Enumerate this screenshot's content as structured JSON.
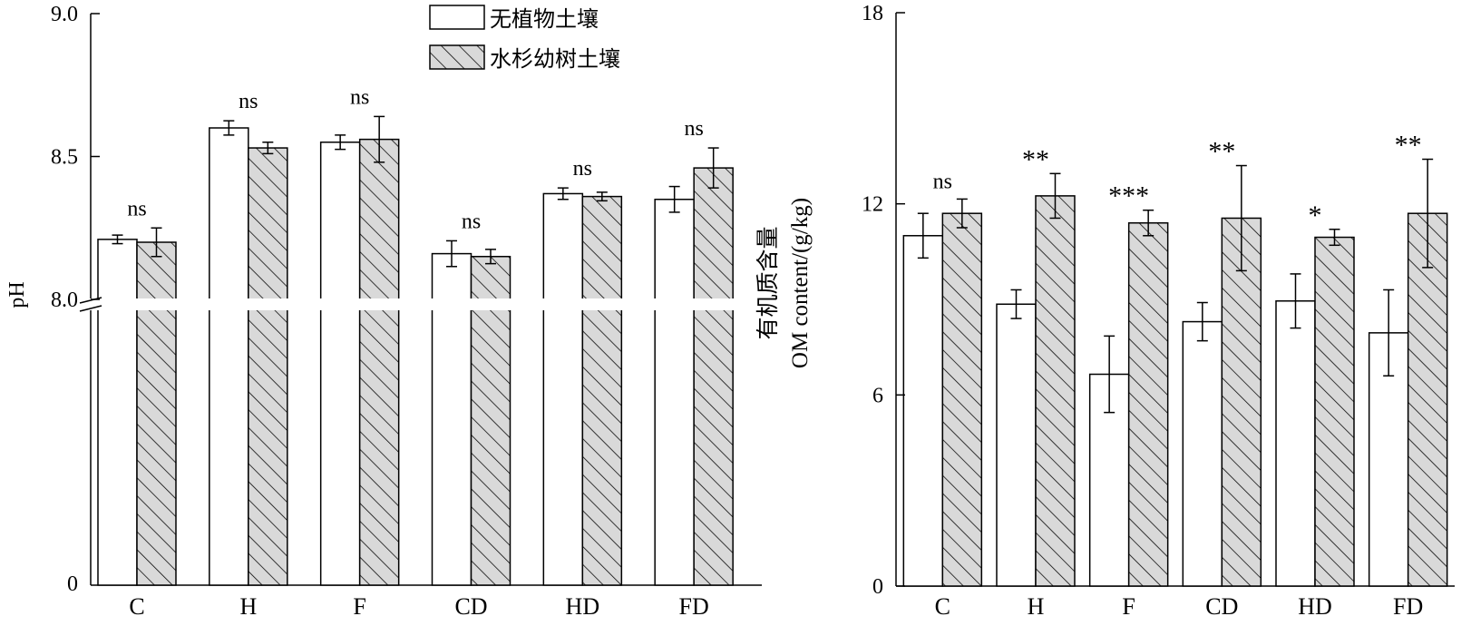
{
  "colors": {
    "no_plant_fill": "#ffffff",
    "seedling_fill": "#d9d9d9",
    "hatch": "#000000",
    "axis": "#000000",
    "break_gap": "#ffffff"
  },
  "legend": {
    "entries": [
      "无植物土壤",
      "水杉幼树土壤"
    ],
    "placement": "top-center of left panel"
  },
  "chart_data": [
    {
      "type": "bar",
      "panel": "left",
      "ylabel": "pH",
      "xlabel": "",
      "categories": [
        "C",
        "H",
        "F",
        "CD",
        "HD",
        "FD"
      ],
      "broken_axis": true,
      "ylim_lower": [
        0,
        8.0
      ],
      "ylim_upper": [
        8.0,
        9.0
      ],
      "yticks_lower": [
        "0"
      ],
      "yticks_upper": [
        "8.0",
        "8.5",
        "9.0"
      ],
      "series": [
        {
          "name": "无植物土壤",
          "values": [
            8.21,
            8.6,
            8.55,
            8.16,
            8.37,
            8.35
          ],
          "errors": [
            0.015,
            0.025,
            0.025,
            0.045,
            0.02,
            0.045
          ]
        },
        {
          "name": "水杉幼树土壤",
          "values": [
            8.2,
            8.53,
            8.56,
            8.15,
            8.36,
            8.46
          ],
          "errors": [
            0.05,
            0.02,
            0.08,
            0.025,
            0.015,
            0.07
          ]
        }
      ],
      "annotations": [
        "ns",
        "ns",
        "ns",
        "ns",
        "ns",
        "ns"
      ],
      "grid": false
    },
    {
      "type": "bar",
      "panel": "right",
      "ylabel_line1": "有机质含量",
      "ylabel_line2": "OM content/(g/kg)",
      "xlabel": "",
      "categories": [
        "C",
        "H",
        "F",
        "CD",
        "HD",
        "FD"
      ],
      "ylim": [
        0,
        18
      ],
      "yticks": [
        "0",
        "6",
        "12",
        "18"
      ],
      "series": [
        {
          "name": "无植物土壤",
          "values": [
            11.0,
            8.85,
            6.65,
            8.3,
            8.95,
            7.95
          ],
          "errors": [
            0.7,
            0.45,
            1.2,
            0.6,
            0.85,
            1.35
          ]
        },
        {
          "name": "水杉幼树土壤",
          "values": [
            11.7,
            12.25,
            11.4,
            11.55,
            10.95,
            11.7
          ],
          "errors": [
            0.45,
            0.7,
            0.4,
            1.65,
            0.25,
            1.7
          ]
        }
      ],
      "annotations": [
        "ns",
        "**",
        "***",
        "**",
        "*",
        "**"
      ],
      "grid": false
    }
  ]
}
